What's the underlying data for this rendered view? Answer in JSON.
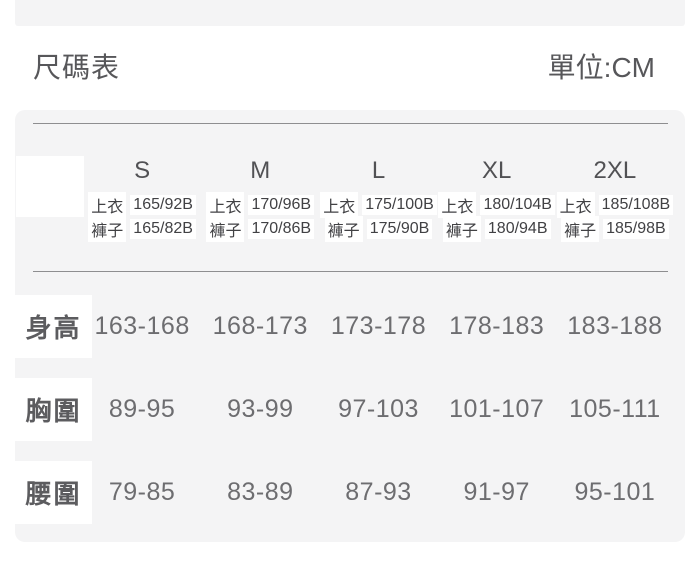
{
  "header": {
    "title": "尺碼表",
    "unit_label": "單位:CM"
  },
  "table": {
    "sizes": [
      "S",
      "M",
      "L",
      "XL",
      "2XL"
    ],
    "subheader": [
      {
        "label": "上衣",
        "values": [
          "165/92B",
          "170/96B",
          "175/100B",
          "180/104B",
          "185/108B"
        ]
      },
      {
        "label": "褲子",
        "values": [
          "165/82B",
          "170/86B",
          "175/90B",
          "180/94B",
          "185/98B"
        ]
      }
    ],
    "rows": [
      {
        "label": "身高",
        "values": [
          "163-168",
          "168-173",
          "173-178",
          "178-183",
          "183-188"
        ]
      },
      {
        "label": "胸圍",
        "values": [
          "89-95",
          "93-99",
          "97-103",
          "101-107",
          "105-111"
        ]
      },
      {
        "label": "腰圍",
        "values": [
          "79-85",
          "83-89",
          "87-93",
          "91-97",
          "95-101"
        ]
      }
    ]
  },
  "colors": {
    "page_bg": "#ffffff",
    "panel_bg": "#f4f4f5",
    "rule": "#8e8e90",
    "title_text": "#57575a",
    "header_text": "#515154",
    "label_text": "#5c5c5f",
    "value_text": "#6d6d70"
  },
  "chart_data": {
    "type": "table",
    "title": "尺碼表",
    "unit": "CM",
    "columns": [
      "S",
      "M",
      "L",
      "XL",
      "2XL"
    ],
    "rows": [
      {
        "label": "上衣",
        "values": [
          "165/92B",
          "170/96B",
          "175/100B",
          "180/104B",
          "185/108B"
        ]
      },
      {
        "label": "褲子",
        "values": [
          "165/82B",
          "170/86B",
          "175/90B",
          "180/94B",
          "185/98B"
        ]
      },
      {
        "label": "身高",
        "values": [
          "163-168",
          "168-173",
          "173-178",
          "178-183",
          "183-188"
        ]
      },
      {
        "label": "胸圍",
        "values": [
          "89-95",
          "93-99",
          "97-103",
          "101-107",
          "105-111"
        ]
      },
      {
        "label": "腰圍",
        "values": [
          "79-85",
          "83-89",
          "87-93",
          "91-97",
          "95-101"
        ]
      }
    ]
  }
}
